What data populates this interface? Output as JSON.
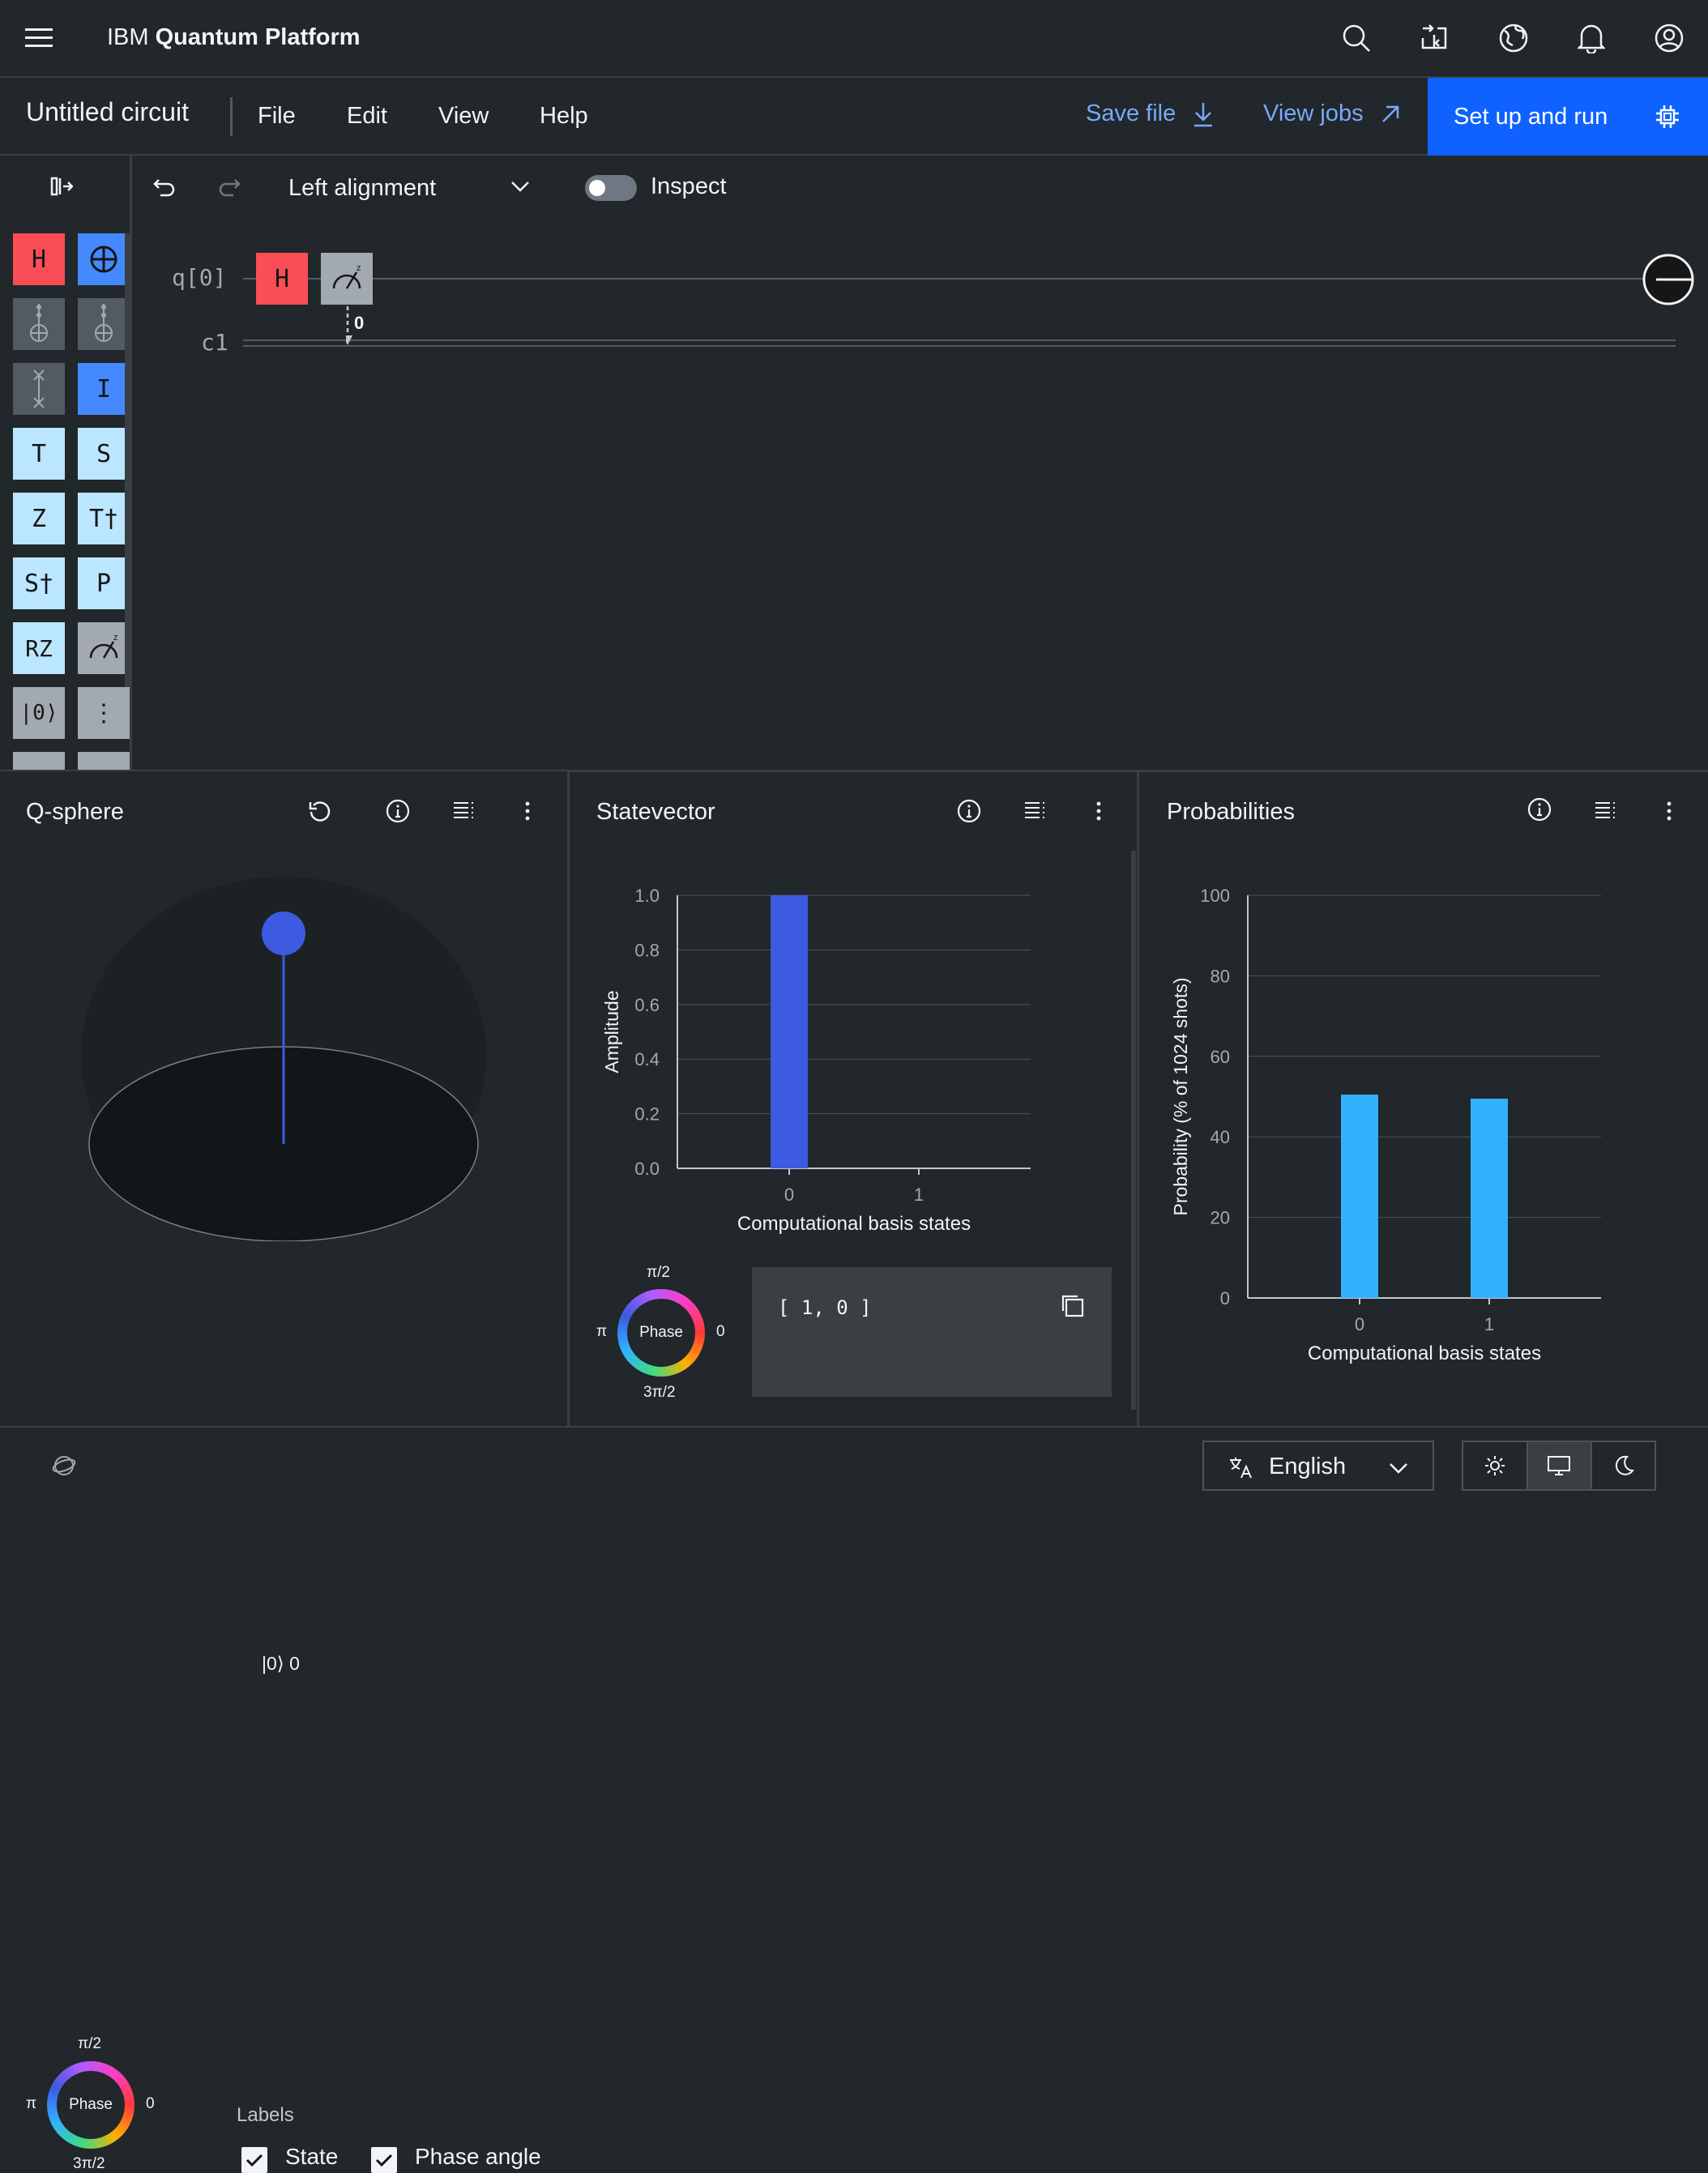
{
  "header": {
    "brand_prefix": "IBM",
    "brand_name": "Quantum Platform"
  },
  "menubar": {
    "circuit_title": "Untitled circuit",
    "menus": [
      "File",
      "Edit",
      "View",
      "Help"
    ],
    "save_file": "Save file",
    "view_jobs": "View jobs",
    "setup_run": "Set up and run"
  },
  "toolbar": {
    "alignment": "Left alignment",
    "inspect_label": "Inspect",
    "inspect_on": false
  },
  "palette": {
    "gates": [
      "H",
      "⊕",
      "",
      "",
      "",
      "I",
      "T",
      "S",
      "Z",
      "T†",
      "S†",
      "P",
      "RZ",
      "",
      "|0⟩",
      "⋮"
    ]
  },
  "circuit": {
    "qubit_label": "q[0]",
    "classical_label": "c1",
    "gate_h": "H",
    "measure_bit": "0"
  },
  "qsphere": {
    "title": "Q-sphere",
    "state_label": "|0⟩ 0",
    "phase": {
      "center": "Phase",
      "top": "π/2",
      "left": "π",
      "right": "0",
      "bottom": "3π/2"
    },
    "labels_heading": "Labels",
    "label_state": "State",
    "label_phase_angle": "Phase angle",
    "colors": {
      "state_dot": "#3d5ae0"
    }
  },
  "statevector": {
    "title": "Statevector",
    "vector_text": "[ 1, 0 ]",
    "phase": {
      "center": "Phase",
      "top": "π/2",
      "left": "π",
      "right": "0",
      "bottom": "3π/2"
    }
  },
  "probabilities": {
    "title": "Probabilities"
  },
  "chart_data": [
    {
      "type": "bar",
      "title": "Statevector",
      "categories": [
        "0",
        "1"
      ],
      "values": [
        1.0,
        0.0
      ],
      "xlabel": "Computational basis states",
      "ylabel": "Amplitude",
      "ylim": [
        0,
        1.0
      ],
      "yticks": [
        "0.0",
        "0.2",
        "0.4",
        "0.6",
        "0.8",
        "1.0"
      ],
      "color": "#3d5ae0"
    },
    {
      "type": "bar",
      "title": "Probabilities",
      "categories": [
        "0",
        "1"
      ],
      "values": [
        50.5,
        49.5
      ],
      "xlabel": "Computational basis states",
      "ylabel": "Probability (% of 1024 shots)",
      "ylim": [
        0,
        100
      ],
      "yticks": [
        "0",
        "20",
        "40",
        "60",
        "80",
        "100"
      ],
      "color": "#33b1ff"
    }
  ],
  "footer": {
    "language": "English"
  }
}
